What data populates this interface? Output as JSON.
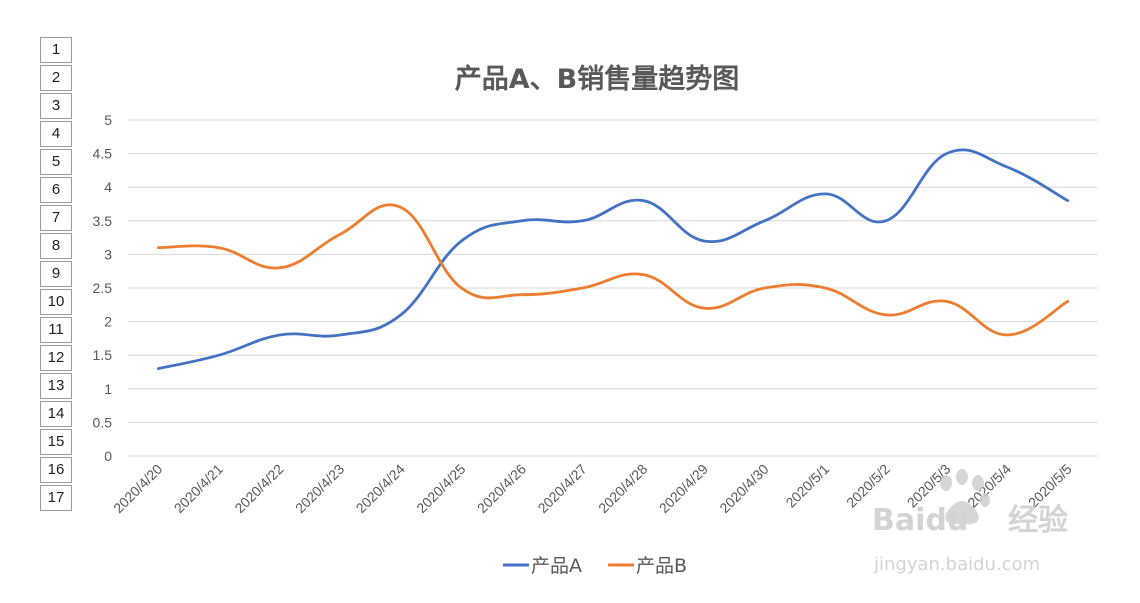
{
  "sheet": {
    "row_numbers": [
      "1",
      "2",
      "3",
      "4",
      "5",
      "6",
      "7",
      "8",
      "9",
      "10",
      "11",
      "12",
      "13",
      "14",
      "15",
      "16",
      "17"
    ]
  },
  "chart_data": {
    "type": "line",
    "title": "产品A、B销售量趋势图",
    "categories": [
      "2020/4/20",
      "2020/4/21",
      "2020/4/22",
      "2020/4/23",
      "2020/4/24",
      "2020/4/25",
      "2020/4/26",
      "2020/4/27",
      "2020/4/28",
      "2020/4/29",
      "2020/4/30",
      "2020/5/1",
      "2020/5/2",
      "2020/5/3",
      "2020/5/4",
      "2020/5/5"
    ],
    "series": [
      {
        "name": "产品A",
        "color": "#4472C4",
        "values": [
          1.3,
          1.5,
          1.8,
          1.8,
          2.1,
          3.2,
          3.5,
          3.5,
          3.8,
          3.2,
          3.5,
          3.9,
          3.5,
          4.5,
          4.3,
          3.8
        ]
      },
      {
        "name": "产品B",
        "color": "#ED7D31",
        "values": [
          3.1,
          3.1,
          2.8,
          3.3,
          3.7,
          2.5,
          2.4,
          2.5,
          2.7,
          2.2,
          2.5,
          2.5,
          2.1,
          2.3,
          1.8,
          2.3
        ]
      }
    ],
    "ylim": [
      0,
      5
    ],
    "yticks": [
      "0",
      "0.5",
      "1",
      "1.5",
      "2",
      "2.5",
      "3",
      "3.5",
      "4",
      "4.5",
      "5"
    ],
    "grid": true,
    "smooth": true,
    "legend_position": "bottom",
    "gridline_color": "#D9D9D9"
  },
  "watermark": {
    "brand": "Baidu",
    "product": "经验",
    "url": "jingyan.baidu.com"
  }
}
